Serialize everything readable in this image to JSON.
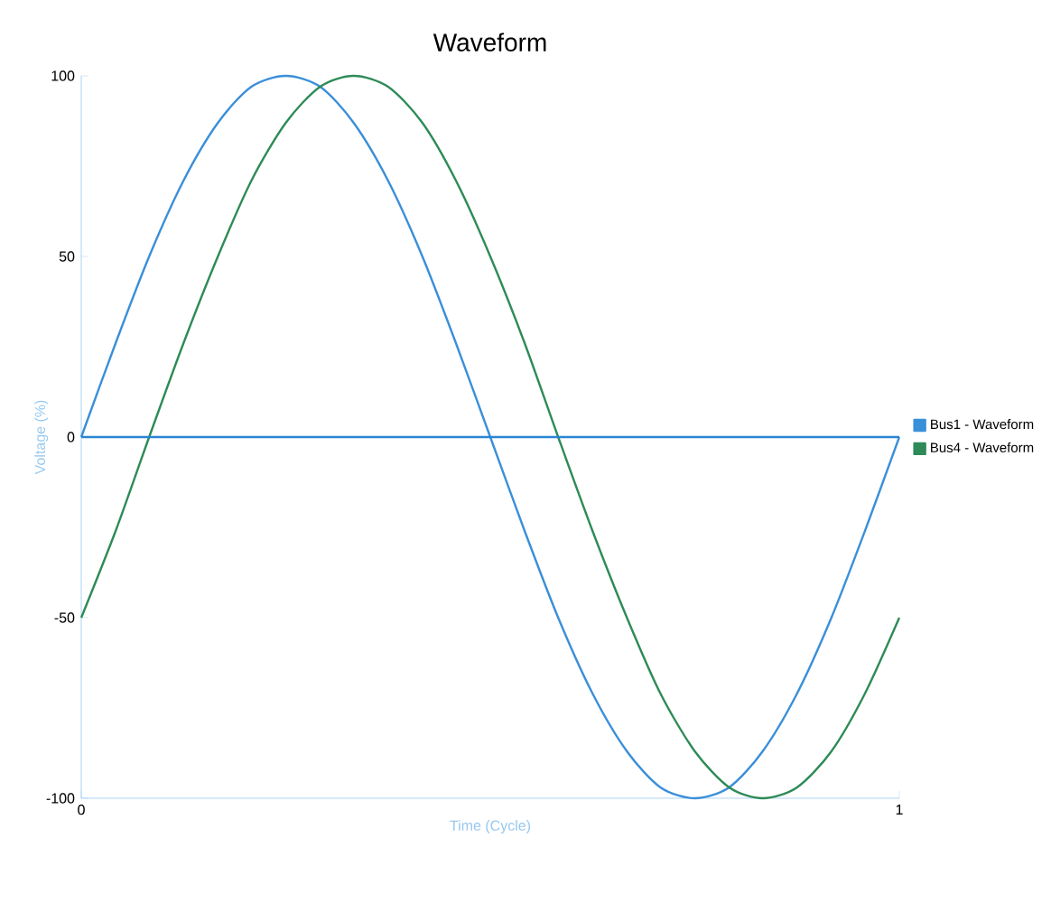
{
  "chart_data": {
    "type": "line",
    "title": "Waveform",
    "xlabel": "Time (Cycle)",
    "ylabel": "Voltage (%)",
    "x": [
      0,
      0.042,
      0.083,
      0.125,
      0.167,
      0.208,
      0.25,
      0.292,
      0.333,
      0.375,
      0.417,
      0.458,
      0.5,
      0.542,
      0.583,
      0.625,
      0.667,
      0.708,
      0.75,
      0.792,
      0.833,
      0.875,
      0.917,
      0.958,
      1
    ],
    "series": [
      {
        "name": "Bus1 - Waveform",
        "color": "#3a8fd9",
        "values": [
          0,
          26,
          50,
          71,
          87,
          97,
          100,
          97,
          87,
          71,
          50,
          26,
          0,
          -26,
          -50,
          -71,
          -87,
          -97,
          -100,
          -97,
          -87,
          -71,
          -50,
          -26,
          0
        ]
      },
      {
        "name": "Bus4 - Waveform",
        "color": "#2e8b57",
        "values": [
          -50,
          -26,
          0,
          26,
          50,
          71,
          87,
          97,
          100,
          97,
          87,
          71,
          50,
          26,
          0,
          -26,
          -50,
          -71,
          -87,
          -97,
          -100,
          -97,
          -87,
          -71,
          -50
        ]
      }
    ],
    "xlim": [
      0,
      1
    ],
    "ylim": [
      -100,
      100
    ],
    "xticks": [
      0,
      1
    ],
    "yticks": [
      -100,
      -50,
      0,
      50,
      100
    ],
    "ref_lines": [
      {
        "axis": "y",
        "value": 0,
        "color": "#2a84d2"
      }
    ],
    "legend": "right",
    "marker": "none",
    "line_style": "solid"
  }
}
